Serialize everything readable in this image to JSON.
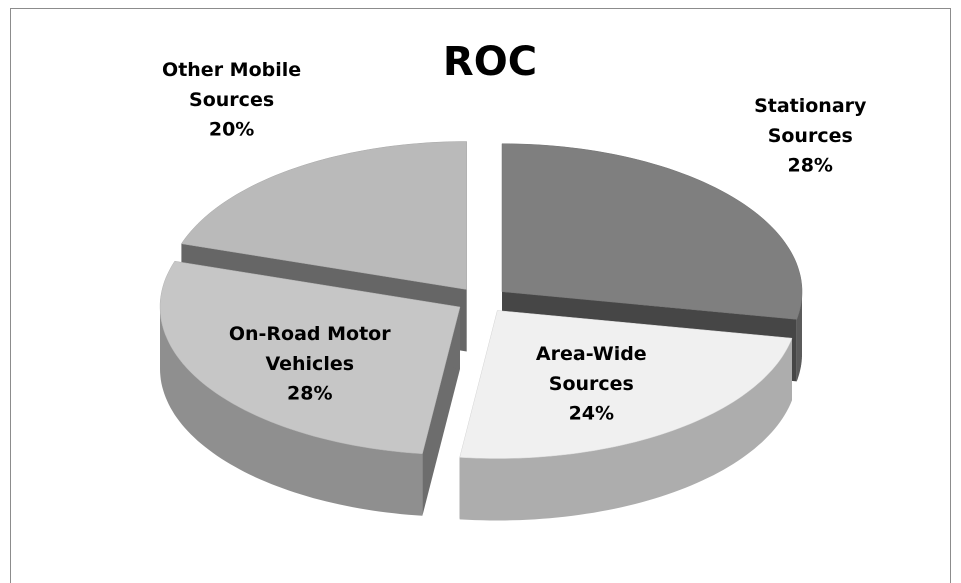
{
  "chart_data": {
    "type": "pie",
    "title": "ROC",
    "categories": [
      "Stationary Sources",
      "Area-Wide Sources",
      "On-Road Motor Vehicles",
      "Other Mobile Sources"
    ],
    "values": [
      28,
      24,
      28,
      20
    ],
    "value_labels": [
      "28%",
      "24%",
      "28%",
      "20%"
    ],
    "colors": [
      "#7f7f7f",
      "#f0f0f0",
      "#c6c6c6",
      "#bababa"
    ],
    "explode": true,
    "three_d": true
  }
}
